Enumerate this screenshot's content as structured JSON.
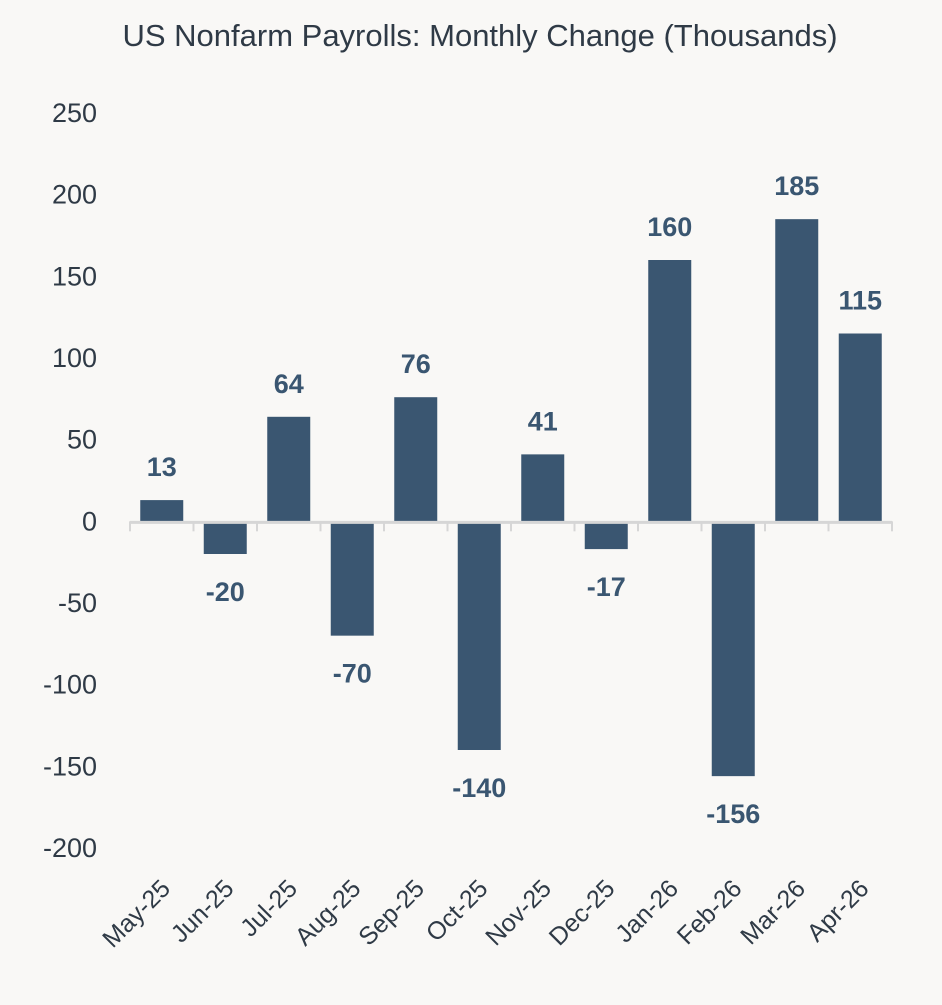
{
  "chart_data": {
    "type": "bar",
    "title": "US Nonfarm Payrolls: Monthly Change (Thousands)",
    "xlabel": "",
    "ylabel": "",
    "categories": [
      "May-25",
      "Jun-25",
      "Jul-25",
      "Aug-25",
      "Sep-25",
      "Oct-25",
      "Nov-25",
      "Dec-25",
      "Jan-26",
      "Feb-26",
      "Mar-26",
      "Apr-26"
    ],
    "values": [
      13,
      -20,
      64,
      -70,
      76,
      -140,
      41,
      -17,
      160,
      -156,
      185,
      115
    ],
    "ylim": [
      -200,
      250
    ],
    "yticks": [
      250,
      200,
      150,
      100,
      50,
      0,
      -50,
      -100,
      -150,
      -200
    ],
    "grid": false,
    "legend": "none",
    "colors": {
      "bar": "#3a5671",
      "axis": "#d6d6d6",
      "text": "#2f3a46",
      "label": "#3a5671",
      "background": "#f9f8f6"
    }
  }
}
